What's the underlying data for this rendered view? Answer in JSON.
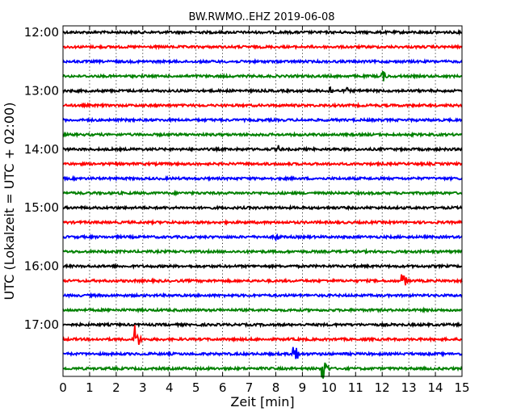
{
  "chart_data": {
    "type": "line",
    "title": "BW.RWMO..EHZ 2019-06-08",
    "xlabel": "Zeit  [min]",
    "ylabel": "UTC (Lokalzeit = UTC + 02:00)",
    "xlim": [
      0,
      15
    ],
    "x_ticks": [
      "0",
      "1",
      "2",
      "3",
      "4",
      "5",
      "6",
      "7",
      "8",
      "9",
      "10",
      "11",
      "12",
      "13",
      "14",
      "15"
    ],
    "y_tick_labels": [
      "12:00",
      "13:00",
      "14:00",
      "15:00",
      "16:00",
      "17:00"
    ],
    "trace_start_utc": "12:00",
    "trace_interval_min": 15,
    "trace_count": 24,
    "trace_colors": [
      "#000000",
      "#ff0000",
      "#0000ff",
      "#008000"
    ],
    "grid": "dotted vertical lines at each minute",
    "events": [
      {
        "trace_utc": "12:45",
        "minute": 12.0,
        "amplitude": 0.55
      },
      {
        "trace_utc": "13:00",
        "minute": 10.0,
        "amplitude": 0.5
      },
      {
        "trace_utc": "13:00",
        "minute": 10.65,
        "amplitude": 0.3
      },
      {
        "trace_utc": "14:00",
        "minute": 8.1,
        "amplitude": 0.3
      },
      {
        "trace_utc": "14:30",
        "minute": 7.8,
        "amplitude": 0.15
      },
      {
        "trace_utc": "15:30",
        "minute": 8.0,
        "amplitude": 0.4
      },
      {
        "trace_utc": "16:15",
        "minute": 12.75,
        "amplitude": 0.9
      },
      {
        "trace_utc": "17:15",
        "minute": 2.7,
        "amplitude": 1.4
      },
      {
        "trace_utc": "17:30",
        "minute": 8.65,
        "amplitude": 1.4
      },
      {
        "trace_utc": "17:45",
        "minute": 9.75,
        "amplitude": 1.4
      }
    ]
  }
}
